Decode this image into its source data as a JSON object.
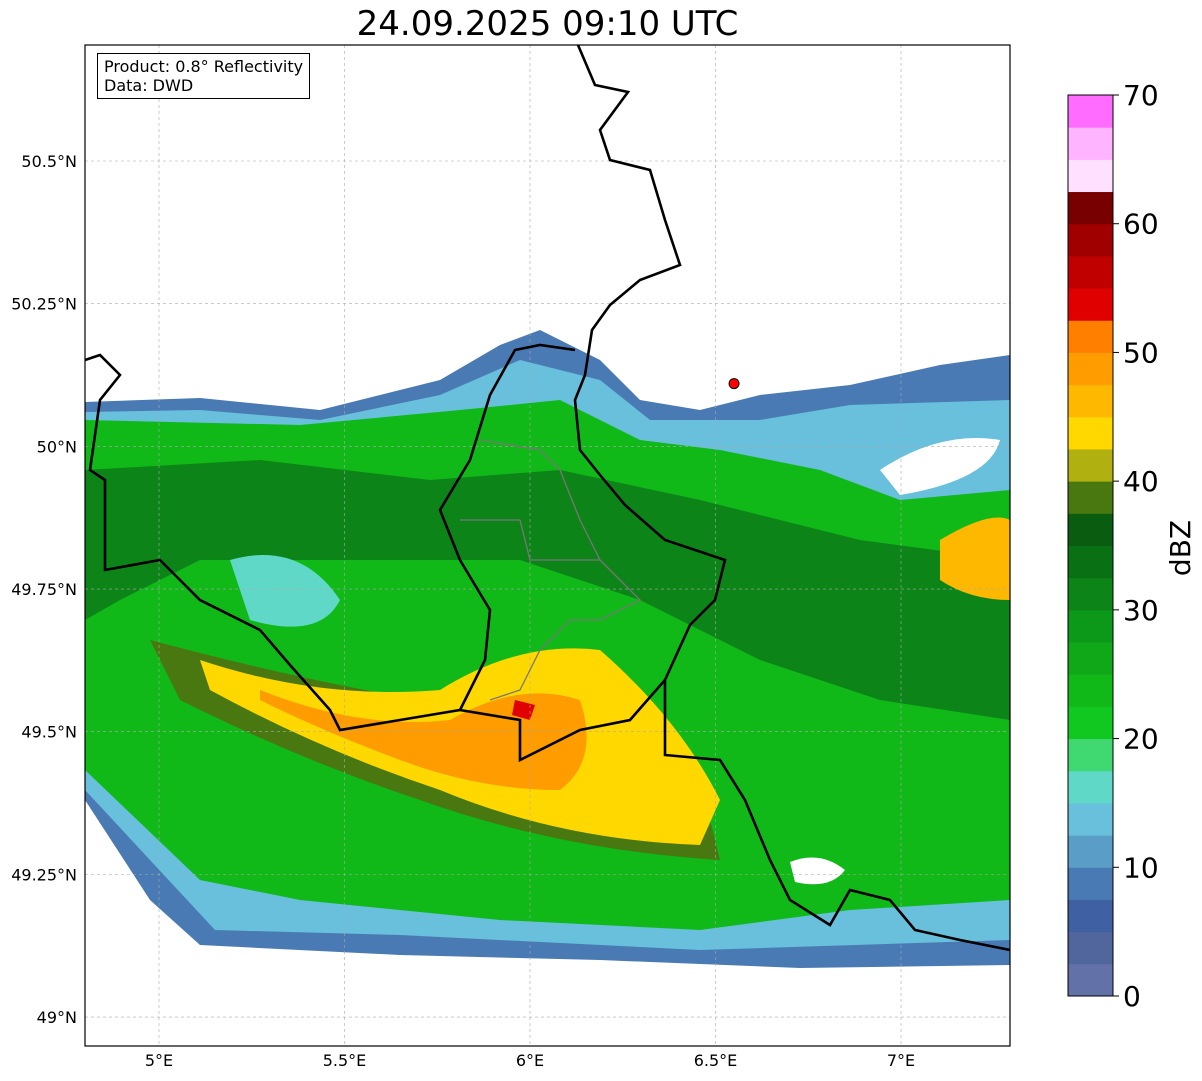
{
  "title": "24.09.2025 09:10 UTC",
  "info": {
    "line1": "Product: 0.8° Reflectivity",
    "line2": "Data: DWD"
  },
  "axes": {
    "lon_ticks": [
      {
        "value": 5.0,
        "label": "5°E"
      },
      {
        "value": 5.5,
        "label": "5.5°E"
      },
      {
        "value": 6.0,
        "label": "6°E"
      },
      {
        "value": 6.5,
        "label": "6.5°E"
      },
      {
        "value": 7.0,
        "label": "7°E"
      }
    ],
    "lat_ticks": [
      {
        "value": 50.5,
        "label": "50.5°N"
      },
      {
        "value": 50.25,
        "label": "50.25°N"
      },
      {
        "value": 50.0,
        "label": "50°N"
      },
      {
        "value": 49.75,
        "label": "49.75°N"
      },
      {
        "value": 49.5,
        "label": "49.5°N"
      },
      {
        "value": 49.25,
        "label": "49.25°N"
      },
      {
        "value": 49.0,
        "label": "49°N"
      }
    ],
    "lon_range": [
      4.8,
      7.3
    ],
    "lat_range": [
      48.95,
      50.7
    ]
  },
  "radar_site": {
    "lon": 6.55,
    "lat": 50.11,
    "color": "#ff0000"
  },
  "colorbar": {
    "label": "dBZ",
    "min": 0,
    "max": 70,
    "step": 2.5,
    "ticks": [
      0,
      10,
      20,
      30,
      40,
      50,
      60,
      70
    ],
    "tick_labels": [
      "0",
      "10",
      "20",
      "30",
      "40",
      "50",
      "60",
      "70"
    ],
    "colors": [
      "#6272a8",
      "#52669e",
      "#4060a4",
      "#4a7ab4",
      "#5a9ec8",
      "#68c0dc",
      "#60d8c8",
      "#40d870",
      "#10c820",
      "#10b818",
      "#10a818",
      "#0c9818",
      "#0c8418",
      "#0a7014",
      "#0a5c10",
      "#4a7810",
      "#b0b010",
      "#ffd800",
      "#ffb800",
      "#ff9c00",
      "#ff8000",
      "#e00000",
      "#c00000",
      "#a00000",
      "#780000",
      "#ffe0ff",
      "#ffb4ff",
      "#ff6cff",
      "#e838f0"
    ]
  }
}
